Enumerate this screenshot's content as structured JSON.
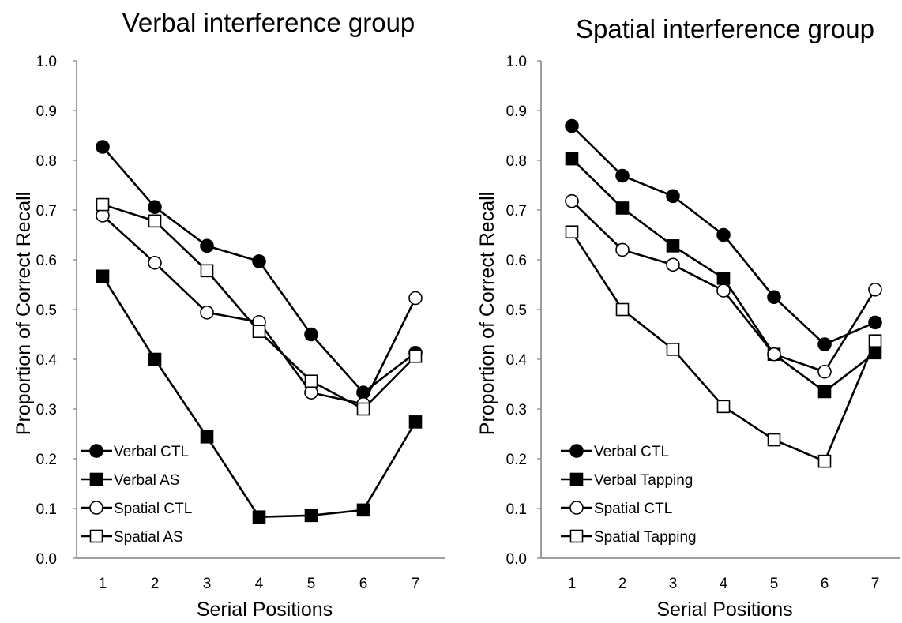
{
  "chart_data": [
    {
      "type": "line",
      "title": "Verbal interference group",
      "xlabel": "Serial Positions",
      "ylabel": "Proportion of Correct Recall",
      "categories": [
        "1",
        "2",
        "3",
        "4",
        "5",
        "6",
        "7"
      ],
      "ylim": [
        0,
        1
      ],
      "yticks": [
        "0.0",
        "0.1",
        "0.2",
        "0.3",
        "0.4",
        "0.5",
        "0.6",
        "0.7",
        "0.8",
        "0.9",
        "1.0"
      ],
      "grid": false,
      "legend_position": "bottom-left",
      "series": [
        {
          "name": "Verbal CTL",
          "marker": "filled-circle",
          "values": [
            0.827,
            0.706,
            0.628,
            0.597,
            0.45,
            0.333,
            0.413
          ]
        },
        {
          "name": "Verbal AS",
          "marker": "filled-square",
          "values": [
            0.567,
            0.4,
            0.244,
            0.083,
            0.086,
            0.097,
            0.274
          ]
        },
        {
          "name": "Spatial CTL",
          "marker": "open-circle",
          "values": [
            0.689,
            0.594,
            0.494,
            0.475,
            0.333,
            0.31,
            0.523
          ]
        },
        {
          "name": "Spatial AS",
          "marker": "open-square",
          "values": [
            0.711,
            0.678,
            0.578,
            0.456,
            0.356,
            0.3,
            0.406
          ]
        }
      ]
    },
    {
      "type": "line",
      "title": "Spatial interference group",
      "xlabel": "Serial Positions",
      "ylabel": "Proportion of Correct Recall",
      "categories": [
        "1",
        "2",
        "3",
        "4",
        "5",
        "6",
        "7"
      ],
      "ylim": [
        0,
        1
      ],
      "yticks": [
        "0.0",
        "0.1",
        "0.2",
        "0.3",
        "0.4",
        "0.5",
        "0.6",
        "0.7",
        "0.8",
        "0.9",
        "1.0"
      ],
      "grid": false,
      "legend_position": "bottom-left",
      "series": [
        {
          "name": "Verbal CTL",
          "marker": "filled-circle",
          "values": [
            0.869,
            0.769,
            0.728,
            0.65,
            0.525,
            0.43,
            0.474
          ]
        },
        {
          "name": "Verbal Tapping",
          "marker": "filled-square",
          "values": [
            0.803,
            0.704,
            0.628,
            0.563,
            0.41,
            0.335,
            0.413
          ]
        },
        {
          "name": "Spatial CTL",
          "marker": "open-circle",
          "values": [
            0.718,
            0.62,
            0.59,
            0.538,
            0.41,
            0.375,
            0.54
          ]
        },
        {
          "name": "Spatial Tapping",
          "marker": "open-square",
          "values": [
            0.656,
            0.5,
            0.42,
            0.305,
            0.238,
            0.195,
            0.437
          ]
        }
      ]
    }
  ]
}
